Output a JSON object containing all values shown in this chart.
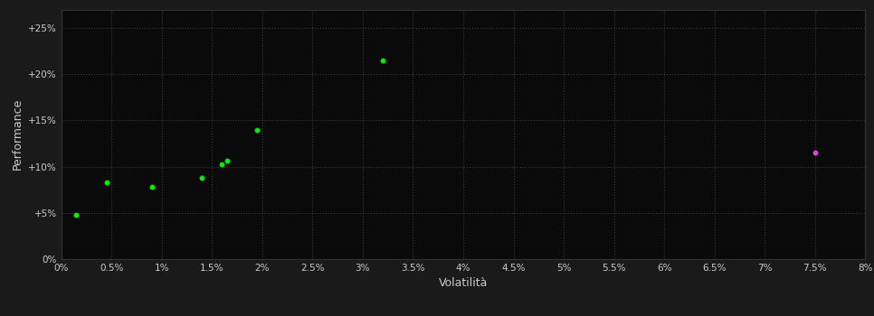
{
  "background_color": "#1a1a1a",
  "plot_bg_color": "#0a0a0a",
  "grid_color": "#3a3a3a",
  "grid_style": ":",
  "green_points": [
    [
      0.0015,
      0.048
    ],
    [
      0.0045,
      0.083
    ],
    [
      0.009,
      0.078
    ],
    [
      0.014,
      0.088
    ],
    [
      0.016,
      0.103
    ],
    [
      0.0165,
      0.106
    ],
    [
      0.0195,
      0.14
    ],
    [
      0.032,
      0.215
    ]
  ],
  "magenta_points": [
    [
      0.075,
      0.115
    ]
  ],
  "green_color": "#00ee00",
  "magenta_color": "#dd44dd",
  "xlabel": "Volatilità",
  "ylabel": "Performance",
  "xlim": [
    0.0,
    0.08
  ],
  "ylim": [
    0.0,
    0.27
  ],
  "x_ticks": [
    0.0,
    0.005,
    0.01,
    0.015,
    0.02,
    0.025,
    0.03,
    0.035,
    0.04,
    0.045,
    0.05,
    0.055,
    0.06,
    0.065,
    0.07,
    0.075,
    0.08
  ],
  "y_ticks": [
    0.0,
    0.05,
    0.1,
    0.15,
    0.2,
    0.25
  ],
  "y_tick_labels": [
    "0%",
    "+5%",
    "+10%",
    "+15%",
    "+20%",
    "+25%"
  ],
  "x_tick_labels": [
    "0%",
    "0.5%",
    "1%",
    "1.5%",
    "2%",
    "2.5%",
    "3%",
    "3.5%",
    "4%",
    "4.5%",
    "5%",
    "5.5%",
    "6%",
    "6.5%",
    "7%",
    "7.5%",
    "8%"
  ],
  "marker_size": 7,
  "axis_label_color": "#cccccc",
  "tick_color": "#cccccc",
  "tick_fontsize": 7.5,
  "axis_label_fontsize": 9,
  "spine_color": "#333333"
}
